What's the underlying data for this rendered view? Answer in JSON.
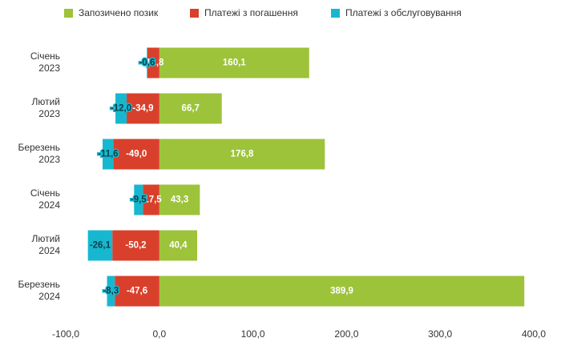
{
  "chart_data": {
    "type": "stacked-barh",
    "categories": [
      "Січень 2023",
      "Лютий 2023",
      "Березень 2023",
      "Січень 2024",
      "Лютий 2024",
      "Березень 2024"
    ],
    "series": [
      {
        "name": "Запозичено позик",
        "color": "#9dc33b",
        "values": [
          160.1,
          66.7,
          176.8,
          43.3,
          40.4,
          389.9
        ],
        "value_labels": [
          "160,1",
          "66,7",
          "176,8",
          "43,3",
          "40,4",
          "389,9"
        ]
      },
      {
        "name": "Платежі з погашення",
        "color": "#d9402b",
        "values": [
          -12.8,
          -34.9,
          -49.0,
          -17.5,
          -50.2,
          -47.6
        ],
        "value_labels": [
          "-12,8",
          "-34,9",
          "-49,0",
          "-17,5",
          "-50,2",
          "-47,6"
        ]
      },
      {
        "name": "Платежі з обслуговування",
        "color": "#17b8cf",
        "values": [
          -0.6,
          -12.0,
          -11.6,
          -9.5,
          -26.1,
          -8.3
        ],
        "value_labels": [
          "-0,6",
          "-12,0",
          "-11,6",
          "-9,5",
          "-26,1",
          "-8,3"
        ]
      }
    ],
    "xlim": [
      -100,
      400
    ],
    "xticks": [
      {
        "value": -100,
        "label": "-100,0"
      },
      {
        "value": 0,
        "label": "0,0"
      },
      {
        "value": 100,
        "label": "100,0"
      },
      {
        "value": 200,
        "label": "200,0"
      },
      {
        "value": 300,
        "label": "300,0"
      },
      {
        "value": 400,
        "label": "400,0"
      }
    ],
    "legend": "top"
  }
}
